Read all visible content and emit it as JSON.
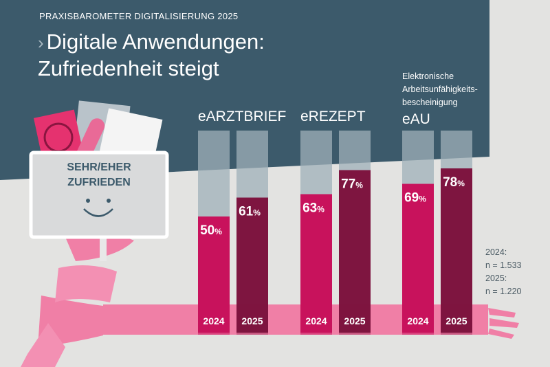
{
  "header": {
    "kicker": "PRAXISBAROMETER DIGITALISIERUNG 2025",
    "title_line1": "Digitale Anwendungen:",
    "title_line2": "Zufriedenheit steigt"
  },
  "sign": {
    "line1": "SEHR/EHER",
    "line2": "ZUFRIEDEN"
  },
  "notes": {
    "n2024_label": "2024:",
    "n2024": "n = 1.533",
    "n2025_label": "2025:",
    "n2025": "n = 1.220"
  },
  "colors": {
    "band": "#3c5a6b",
    "bar2024": "#c8125c",
    "bar2025": "#7e1540",
    "scarf": "#f07fa6",
    "track": "#9fb0b8"
  },
  "chart_data": {
    "type": "bar",
    "title": "Digitale Anwendungen: Zufriedenheit steigt",
    "categories": [
      "eARZTBRIEF",
      "eREZEPT",
      "eAU"
    ],
    "category_subtitle": {
      "eAU": "Elektronische Arbeitsunfähigkeits-bescheinigung"
    },
    "series": [
      {
        "name": "2024",
        "values": [
          50,
          63,
          69
        ]
      },
      {
        "name": "2025",
        "values": [
          61,
          77,
          78
        ]
      }
    ],
    "unit": "%",
    "ylim": [
      0,
      100
    ]
  }
}
